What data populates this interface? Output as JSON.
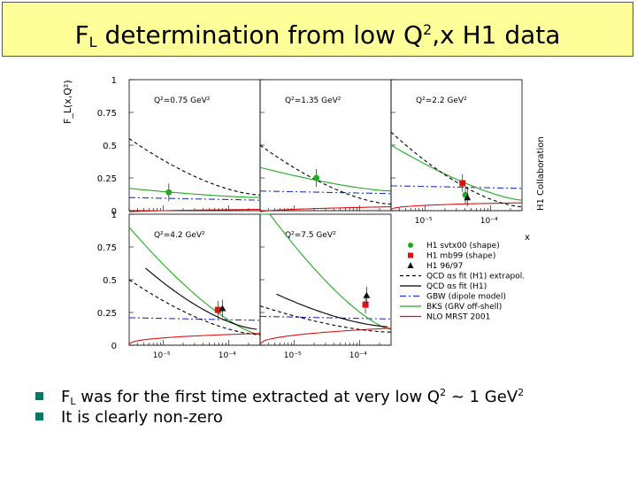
{
  "title": {
    "pre": "F",
    "sub": "L",
    "mid": " determination from low Q",
    "sup": "2",
    "post": ",x H1 data"
  },
  "chart_data": {
    "type": "scatter",
    "ylabel": "F_L(x,Q²)",
    "xlabel": "x",
    "ylim": [
      0,
      1
    ],
    "xscale": "log",
    "y_ticks": [
      "1",
      "0.75",
      "0.5",
      "0.25",
      "0"
    ],
    "x_ticks": [
      "10⁻⁵",
      "10⁻⁴"
    ],
    "side_label": "H1 Collaboration",
    "panels": [
      {
        "label": "Q²=0.75 GeV²",
        "points": [
          {
            "series": "H1 svtx00 (shape)",
            "x": 1.21e-05,
            "y": 0.14
          }
        ]
      },
      {
        "label": "Q²=1.35 GeV²",
        "points": [
          {
            "series": "H1 svtx00 (shape)",
            "x": 2.17e-05,
            "y": 0.25
          }
        ]
      },
      {
        "label": "Q²=2.2 GeV²",
        "points": [
          {
            "series": "H1 mb99 (shape)",
            "x": 3.7e-05,
            "y": 0.21
          },
          {
            "series": "H1 svtx00 (shape)",
            "x": 4.1e-05,
            "y": 0.12
          },
          {
            "series": "H1 96/97",
            "x": 4.4e-05,
            "y": 0.1
          }
        ]
      },
      {
        "label": "Q²=4.2 GeV²",
        "points": [
          {
            "series": "H1 mb99 (shape)",
            "x": 6.81e-05,
            "y": 0.27
          },
          {
            "series": "H1 96/97",
            "x": 7.99e-05,
            "y": 0.28
          }
        ]
      },
      {
        "label": "Q²=7.5 GeV²",
        "points": [
          {
            "series": "H1 mb99 (shape)",
            "x": 0.000122,
            "y": 0.31
          },
          {
            "series": "H1 96/97",
            "x": 0.000127,
            "y": 0.38
          }
        ]
      }
    ],
    "legend": [
      {
        "label": "H1 svtx00 (shape)",
        "kind": "marker",
        "color": "#22aa22",
        "shape": "circle"
      },
      {
        "label": "H1 mb99 (shape)",
        "kind": "marker",
        "color": "#dd1111",
        "shape": "square"
      },
      {
        "label": "H1 96/97",
        "kind": "marker",
        "color": "#111111",
        "shape": "triangle"
      },
      {
        "label": "QCD αs fit (H1) extrapol.",
        "kind": "line",
        "color": "#000000",
        "dash": "4,3"
      },
      {
        "label": "QCD αs fit (H1)",
        "kind": "line",
        "color": "#000000",
        "dash": ""
      },
      {
        "label": "GBW (dipole model)",
        "kind": "line",
        "color": "#2233cc",
        "dash": "7,3,2,3"
      },
      {
        "label": "BKS (GRV off-shell)",
        "kind": "line",
        "color": "#22aa22",
        "dash": ""
      },
      {
        "label": "NLO MRST 2001",
        "kind": "line",
        "color": "#dd1111",
        "dash": ""
      }
    ]
  },
  "bullets": [
    {
      "pre": "F",
      "sub": "L",
      "mid": " was for the first time extracted at very low Q",
      "sup": "2",
      "mid2": " ~ 1 GeV",
      "sup2": "2",
      "post": ""
    },
    {
      "pre": "It is clearly non-zero",
      "sub": "",
      "mid": "",
      "sup": "",
      "mid2": "",
      "sup2": "",
      "post": ""
    }
  ]
}
